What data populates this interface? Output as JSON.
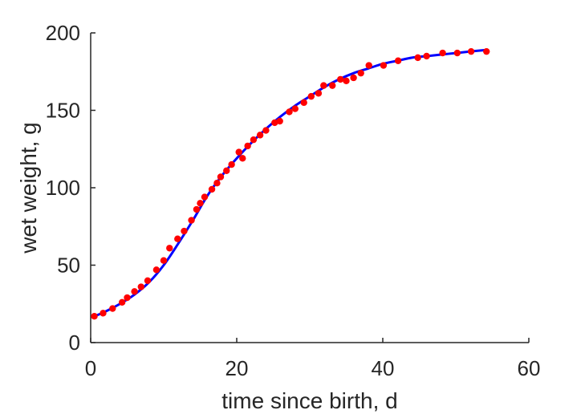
{
  "chart_data": {
    "type": "scatter",
    "title": "",
    "xlabel": "time since birth, d",
    "ylabel": "wet weight, g",
    "xlim": [
      0,
      60
    ],
    "ylim": [
      0,
      200
    ],
    "xticks": [
      "0",
      "20",
      "40",
      "60"
    ],
    "yticks": [
      "0",
      "50",
      "100",
      "150",
      "200"
    ],
    "grid": false,
    "legend": "none",
    "colors": {
      "points": "#ff0000",
      "fit": "#0000ff",
      "axis": "#262626"
    },
    "series": [
      {
        "kind": "points",
        "x": [
          0.5,
          1.7,
          3.0,
          4.3,
          5.0,
          6.0,
          6.9,
          7.8,
          9.0,
          10.0,
          10.8,
          11.9,
          12.8,
          13.8,
          14.5,
          15.0,
          15.6,
          16.6,
          17.3,
          17.8,
          18.6,
          19.3,
          20.3,
          20.8,
          21.5,
          22.3,
          23.2,
          24.0,
          25.2,
          25.9,
          27.2,
          28.0,
          29.2,
          30.2,
          31.2,
          31.9,
          33.1,
          34.2,
          35.0,
          36.0,
          37.0,
          38.1,
          40.1,
          42.1,
          44.8,
          46.0,
          48.2,
          50.2,
          52.1,
          54.2
        ],
        "y": [
          17,
          19,
          22,
          26,
          29,
          33,
          36,
          40,
          47,
          53,
          61,
          67,
          72,
          79,
          86,
          90,
          94,
          99,
          103,
          107,
          111,
          115,
          123,
          119,
          127,
          131,
          134,
          137,
          142,
          143,
          149,
          151,
          155,
          159,
          161,
          166,
          166,
          170,
          169,
          171,
          174,
          179,
          179,
          182,
          184,
          185,
          187,
          187,
          188,
          188
        ]
      },
      {
        "kind": "fit-line",
        "x": [
          0.5,
          2,
          4,
          6,
          8,
          10,
          12,
          14,
          16,
          18,
          20,
          22,
          24,
          26,
          28,
          30,
          32,
          34,
          36,
          38,
          40,
          42,
          44,
          46,
          48,
          50,
          52,
          54.2
        ],
        "y": [
          17,
          20,
          25,
          31,
          39,
          50,
          64,
          79,
          95,
          108,
          119,
          129,
          138,
          146,
          153,
          159,
          165,
          170,
          174,
          177,
          180,
          182,
          184,
          185,
          186,
          187,
          188,
          189
        ]
      }
    ]
  }
}
